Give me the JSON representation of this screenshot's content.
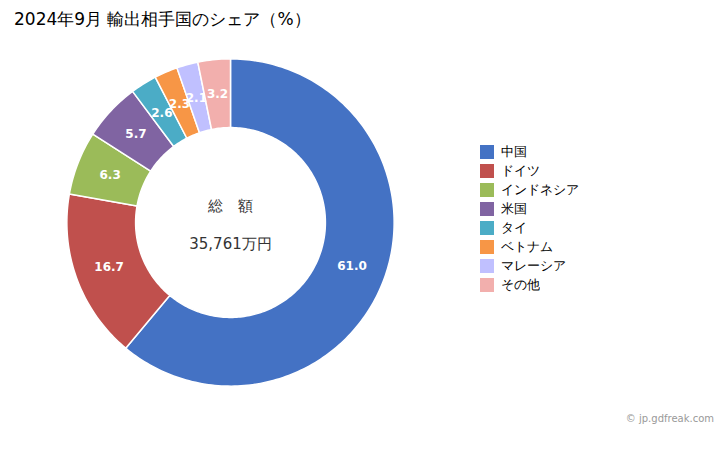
{
  "chart_data": {
    "type": "pie",
    "title": "2024年9月 輸出相手国のシェア（%）",
    "categories": [
      "中国",
      "ドイツ",
      "インドネシア",
      "米国",
      "タイ",
      "ベトナム",
      "マレーシア",
      "その他"
    ],
    "values": [
      61.0,
      16.7,
      6.3,
      5.7,
      2.6,
      2.3,
      2.1,
      3.2
    ],
    "value_labels": [
      "61.0",
      "16.7",
      "6.3",
      "5.7",
      "2.6",
      "2.3",
      "2.1",
      "3.2"
    ],
    "colors": [
      "#4472C4",
      "#C0504D",
      "#9BBB59",
      "#8064A2",
      "#4BACC6",
      "#F79646",
      "#C0C0FF",
      "#F2AFAD"
    ],
    "data_labels": true,
    "legend": "right",
    "annotations": [
      "総　額",
      "35,761万円"
    ],
    "caption": "© jp.gdfreak.com"
  }
}
